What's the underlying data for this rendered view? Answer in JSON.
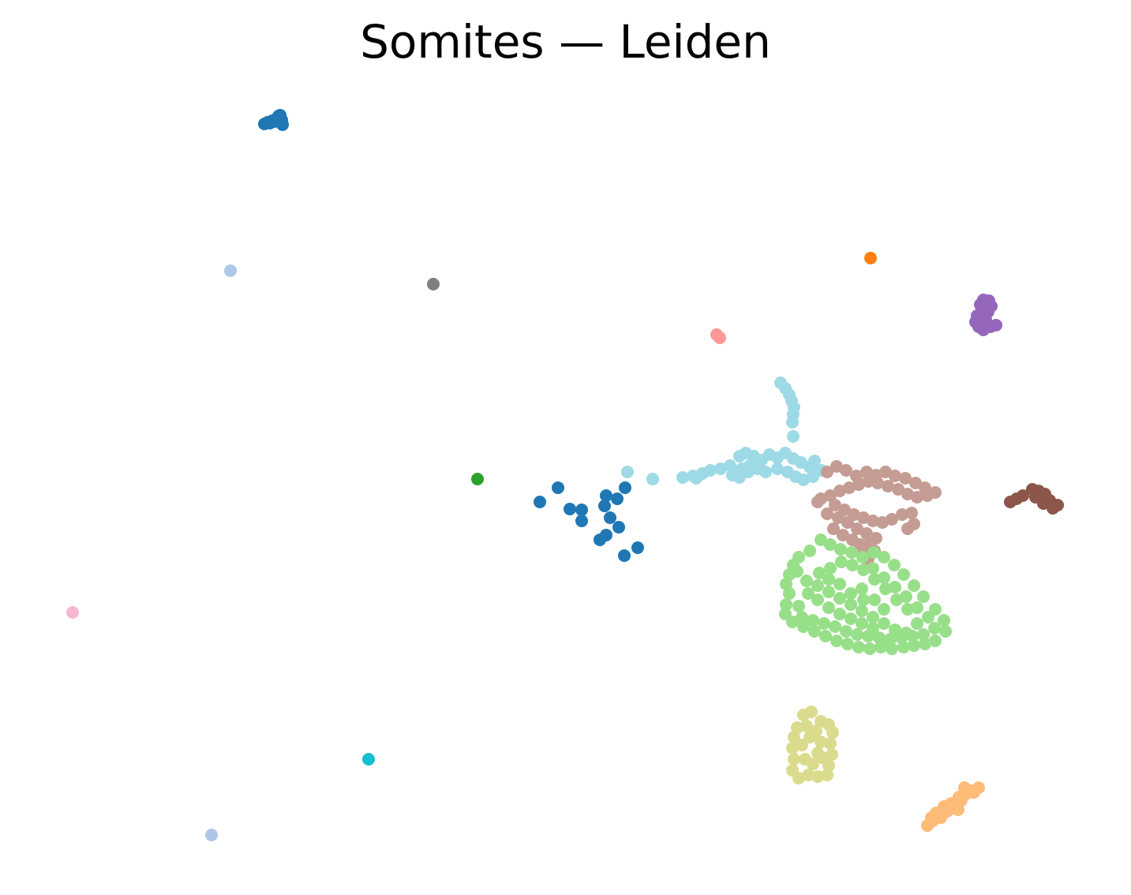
{
  "chart_data": {
    "type": "scatter",
    "title": "Somites — Leiden",
    "axes_visible": false,
    "legend": "none",
    "series": [
      {
        "color": "#1f77b4",
        "points": [
          [
            335,
            157
          ],
          [
            342,
            156
          ],
          [
            348,
            154
          ],
          [
            351,
            150
          ],
          [
            355,
            146
          ],
          [
            357,
            152
          ],
          [
            358,
            158
          ],
          [
            353,
            147
          ],
          [
            345,
            153
          ],
          [
            339,
            155
          ],
          [
            684,
            636
          ],
          [
            707,
            618
          ],
          [
            722,
            645
          ],
          [
            737,
            646
          ],
          [
            737,
            660
          ],
          [
            768,
            628
          ],
          [
            766,
            641
          ],
          [
            782,
            632
          ],
          [
            792,
            618
          ],
          [
            773,
            656
          ],
          [
            784,
            668
          ],
          [
            768,
            678
          ],
          [
            760,
            684
          ],
          [
            791,
            704
          ],
          [
            808,
            694
          ]
        ]
      },
      {
        "color": "#aec7e8",
        "points": [
          [
            292,
            343
          ],
          [
            268,
            1058
          ]
        ]
      },
      {
        "color": "#7f7f7f",
        "points": [
          [
            549,
            360
          ]
        ]
      },
      {
        "color": "#ff7f0e",
        "points": [
          [
            1103,
            327
          ]
        ]
      },
      {
        "color": "#9467bd",
        "points": [
          [
            1246,
            380
          ],
          [
            1253,
            381
          ],
          [
            1256,
            388
          ],
          [
            1252,
            395
          ],
          [
            1244,
            394
          ],
          [
            1238,
            400
          ],
          [
            1236,
            408
          ],
          [
            1240,
            414
          ],
          [
            1246,
            418
          ],
          [
            1255,
            414
          ],
          [
            1262,
            412
          ],
          [
            1249,
            405
          ],
          [
            1242,
            386
          ],
          [
            1250,
            391
          ]
        ]
      },
      {
        "color": "#ff9896",
        "points": [
          [
            908,
            424
          ],
          [
            912,
            428
          ]
        ]
      },
      {
        "color": "#9edae5",
        "points": [
          [
            989,
            485
          ],
          [
            995,
            492
          ],
          [
            1000,
            500
          ],
          [
            1003,
            508
          ],
          [
            1006,
            516
          ],
          [
            1005,
            525
          ],
          [
            1004,
            535
          ],
          [
            1005,
            553
          ],
          [
            795,
            598
          ],
          [
            827,
            607
          ],
          [
            865,
            605
          ],
          [
            878,
            603
          ],
          [
            890,
            600
          ],
          [
            900,
            596
          ],
          [
            913,
            594
          ],
          [
            925,
            590
          ],
          [
            937,
            578
          ],
          [
            945,
            574
          ],
          [
            955,
            578
          ],
          [
            965,
            583
          ],
          [
            975,
            576
          ],
          [
            985,
            580
          ],
          [
            995,
            574
          ],
          [
            1005,
            581
          ],
          [
            1015,
            586
          ],
          [
            1026,
            592
          ],
          [
            1032,
            584
          ],
          [
            1041,
            596
          ],
          [
            1030,
            604
          ],
          [
            1018,
            608
          ],
          [
            1008,
            604
          ],
          [
            998,
            598
          ],
          [
            985,
            594
          ],
          [
            970,
            598
          ],
          [
            960,
            594
          ],
          [
            950,
            590
          ],
          [
            940,
            594
          ],
          [
            928,
            602
          ],
          [
            937,
            605
          ],
          [
            948,
            598
          ],
          [
            882,
            606
          ]
        ]
      },
      {
        "color": "#2ca02c",
        "points": [
          [
            605,
            607
          ]
        ]
      },
      {
        "color": "#c49c94",
        "points": [
          [
            1048,
            598
          ],
          [
            1060,
            591
          ],
          [
            1072,
            596
          ],
          [
            1085,
            603
          ],
          [
            1098,
            598
          ],
          [
            1110,
            602
          ],
          [
            1122,
            598
          ],
          [
            1134,
            603
          ],
          [
            1147,
            606
          ],
          [
            1160,
            612
          ],
          [
            1172,
            618
          ],
          [
            1185,
            624
          ],
          [
            1175,
            628
          ],
          [
            1162,
            630
          ],
          [
            1150,
            626
          ],
          [
            1138,
            620
          ],
          [
            1125,
            616
          ],
          [
            1112,
            612
          ],
          [
            1100,
            610
          ],
          [
            1088,
            614
          ],
          [
            1076,
            618
          ],
          [
            1064,
            622
          ],
          [
            1052,
            628
          ],
          [
            1040,
            632
          ],
          [
            1036,
            636
          ],
          [
            1058,
            640
          ],
          [
            1070,
            646
          ],
          [
            1082,
            652
          ],
          [
            1094,
            656
          ],
          [
            1106,
            660
          ],
          [
            1118,
            662
          ],
          [
            1130,
            658
          ],
          [
            1143,
            652
          ],
          [
            1155,
            650
          ],
          [
            1158,
            664
          ],
          [
            1150,
            670
          ],
          [
            1062,
            656
          ],
          [
            1048,
            651
          ],
          [
            1074,
            662
          ],
          [
            1086,
            670
          ],
          [
            1098,
            676
          ],
          [
            1110,
            682
          ],
          [
            1101,
            690
          ],
          [
            1108,
            698
          ],
          [
            1100,
            708
          ],
          [
            1095,
            700
          ],
          [
            1090,
            690
          ],
          [
            1080,
            684
          ],
          [
            1068,
            678
          ],
          [
            1056,
            670
          ]
        ]
      },
      {
        "color": "#8c564b",
        "points": [
          [
            1280,
            636
          ],
          [
            1288,
            632
          ],
          [
            1296,
            628
          ],
          [
            1308,
            620
          ],
          [
            1316,
            622
          ],
          [
            1324,
            626
          ],
          [
            1330,
            634
          ],
          [
            1340,
            640
          ],
          [
            1334,
            644
          ],
          [
            1322,
            638
          ],
          [
            1312,
            630
          ]
        ]
      },
      {
        "color": "#98df8a",
        "points": [
          [
            1040,
            684
          ],
          [
            1052,
            690
          ],
          [
            1065,
            696
          ],
          [
            1079,
            700
          ],
          [
            1093,
            706
          ],
          [
            1107,
            700
          ],
          [
            1120,
            706
          ],
          [
            1133,
            716
          ],
          [
            1145,
            728
          ],
          [
            1158,
            742
          ],
          [
            1170,
            756
          ],
          [
            1185,
            772
          ],
          [
            1196,
            786
          ],
          [
            1198,
            800
          ],
          [
            1185,
            812
          ],
          [
            1172,
            816
          ],
          [
            1158,
            818
          ],
          [
            1145,
            820
          ],
          [
            1130,
            822
          ],
          [
            1116,
            820
          ],
          [
            1102,
            822
          ],
          [
            1088,
            820
          ],
          [
            1074,
            816
          ],
          [
            1060,
            812
          ],
          [
            1046,
            806
          ],
          [
            1032,
            800
          ],
          [
            1018,
            794
          ],
          [
            1004,
            788
          ],
          [
            995,
            778
          ],
          [
            996,
            766
          ],
          [
            1000,
            752
          ],
          [
            996,
            740
          ],
          [
            1000,
            728
          ],
          [
            1005,
            716
          ],
          [
            1012,
            706
          ],
          [
            1026,
            698
          ],
          [
            1010,
            724
          ],
          [
            1022,
            736
          ],
          [
            1036,
            742
          ],
          [
            1050,
            750
          ],
          [
            1064,
            758
          ],
          [
            1078,
            766
          ],
          [
            1092,
            774
          ],
          [
            1106,
            782
          ],
          [
            1120,
            790
          ],
          [
            1134,
            798
          ],
          [
            1148,
            802
          ],
          [
            1162,
            790
          ],
          [
            1150,
            772
          ],
          [
            1136,
            760
          ],
          [
            1122,
            746
          ],
          [
            1108,
            734
          ],
          [
            1094,
            722
          ],
          [
            1080,
            716
          ],
          [
            1066,
            712
          ],
          [
            1052,
            720
          ],
          [
            1038,
            726
          ],
          [
            1024,
            752
          ],
          [
            1012,
            768
          ],
          [
            1016,
            782
          ],
          [
            1030,
            786
          ],
          [
            1044,
            790
          ],
          [
            1058,
            794
          ],
          [
            1072,
            800
          ],
          [
            1086,
            804
          ],
          [
            1100,
            806
          ],
          [
            1114,
            808
          ],
          [
            1128,
            810
          ],
          [
            1142,
            808
          ],
          [
            1156,
            806
          ],
          [
            1170,
            804
          ],
          [
            1184,
            796
          ],
          [
            1176,
            782
          ],
          [
            1162,
            770
          ],
          [
            1148,
            756
          ],
          [
            1134,
            744
          ],
          [
            1120,
            732
          ],
          [
            1106,
            720
          ],
          [
            1092,
            746
          ],
          [
            1078,
            752
          ],
          [
            1064,
            740
          ],
          [
            1050,
            734
          ],
          [
            1036,
            760
          ],
          [
            1050,
            770
          ],
          [
            1064,
            778
          ],
          [
            1078,
            784
          ],
          [
            1092,
            790
          ],
          [
            1106,
            796
          ],
          [
            1120,
            772
          ],
          [
            1108,
            760
          ],
          [
            1094,
            760
          ]
        ]
      },
      {
        "color": "#dbdb8d",
        "points": [
          [
            1018,
            906
          ],
          [
            1028,
            902
          ],
          [
            1040,
            914
          ],
          [
            1050,
            918
          ],
          [
            1055,
            928
          ],
          [
            1052,
            942
          ],
          [
            1054,
            956
          ],
          [
            1050,
            970
          ],
          [
            1048,
            982
          ],
          [
            1036,
            984
          ],
          [
            1024,
            982
          ],
          [
            1012,
            986
          ],
          [
            1004,
            976
          ],
          [
            1006,
            962
          ],
          [
            1004,
            948
          ],
          [
            1006,
            934
          ],
          [
            1010,
            922
          ],
          [
            1022,
            920
          ],
          [
            1034,
            926
          ],
          [
            1040,
            940
          ],
          [
            1036,
            954
          ],
          [
            1030,
            968
          ],
          [
            1020,
            962
          ],
          [
            1016,
            944
          ],
          [
            1026,
            934
          ],
          [
            1042,
            960
          ]
        ]
      },
      {
        "color": "#17becf",
        "points": [
          [
            467,
            962
          ]
        ]
      },
      {
        "color": "#f7b6d2",
        "points": [
          [
            92,
            776
          ]
        ]
      },
      {
        "color": "#ffbb78",
        "points": [
          [
            1175,
            1046
          ],
          [
            1182,
            1040
          ],
          [
            1188,
            1034
          ],
          [
            1194,
            1030
          ],
          [
            1200,
            1028
          ],
          [
            1206,
            1024
          ],
          [
            1212,
            1020
          ],
          [
            1218,
            1014
          ],
          [
            1224,
            1006
          ],
          [
            1230,
            1002
          ],
          [
            1240,
            998
          ],
          [
            1234,
            1004
          ],
          [
            1222,
            998
          ],
          [
            1215,
            1010
          ],
          [
            1205,
            1018
          ],
          [
            1196,
            1022
          ],
          [
            1186,
            1030
          ],
          [
            1180,
            1036
          ],
          [
            1192,
            1036
          ],
          [
            1202,
            1026
          ],
          [
            1214,
            1026
          ]
        ]
      }
    ]
  }
}
